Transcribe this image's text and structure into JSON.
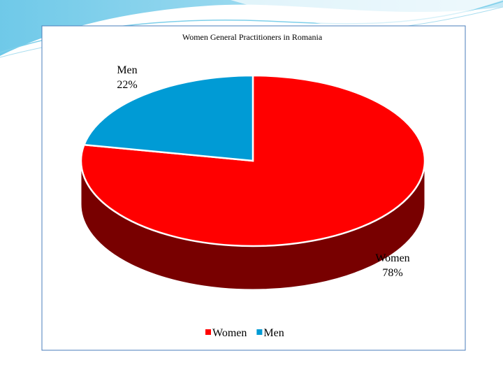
{
  "chart_data": {
    "type": "pie",
    "title": "Women General Practitioners in Romania",
    "categories": [
      "Women",
      "Men"
    ],
    "values": [
      78,
      22
    ],
    "value_labels": [
      "78%",
      "22%"
    ],
    "colors": [
      "#ff0000",
      "#009bd5"
    ],
    "legend": "bottom"
  }
}
